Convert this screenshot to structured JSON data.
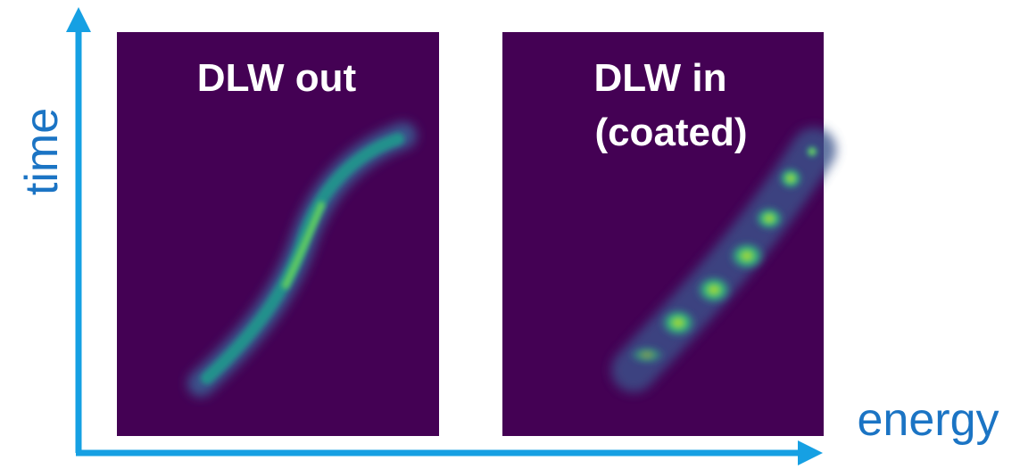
{
  "axes": {
    "y_label": "time",
    "x_label": "energy"
  },
  "panels": [
    {
      "label_lines": [
        "DLW out"
      ]
    },
    {
      "label_lines": [
        "DLW in",
        "(coated)"
      ]
    }
  ]
}
